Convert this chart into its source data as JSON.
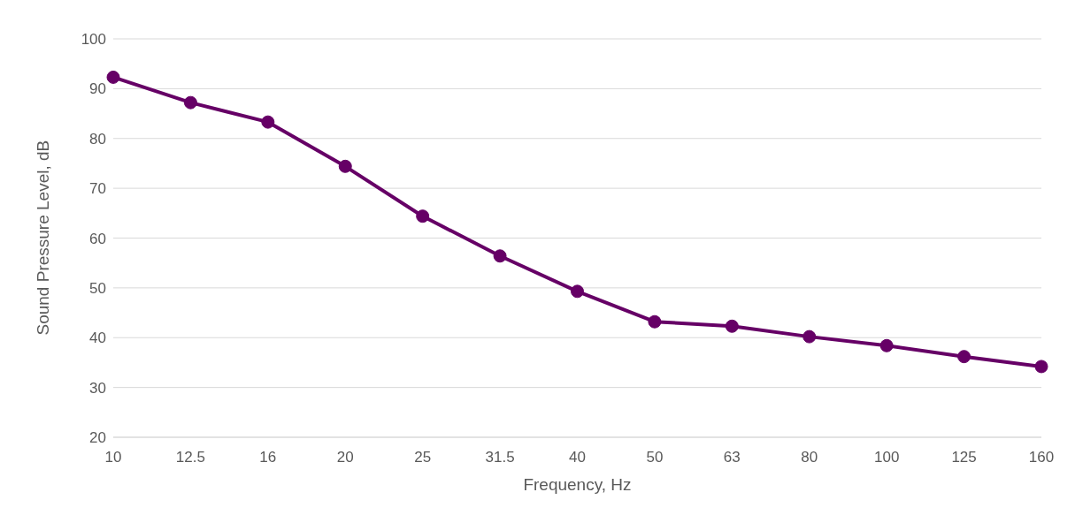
{
  "chart_data": {
    "type": "line",
    "xlabel": "Frequency, Hz",
    "ylabel": "Sound Pressure Level, dB",
    "categories": [
      "10",
      "12.5",
      "16",
      "20",
      "25",
      "31.5",
      "40",
      "50",
      "63",
      "80",
      "100",
      "125",
      "160"
    ],
    "series": [
      {
        "color": "#660066",
        "values": [
          92.3,
          87.2,
          83.3,
          74.4,
          64.4,
          56.4,
          49.3,
          43.2,
          42.3,
          40.2,
          38.4,
          36.2,
          34.2
        ]
      }
    ],
    "ylim": [
      20,
      100
    ],
    "yticks": [
      20,
      30,
      40,
      50,
      60,
      70,
      80,
      90,
      100
    ],
    "grid": "y",
    "legend": false,
    "marker": "circle",
    "line_style": "solid"
  }
}
